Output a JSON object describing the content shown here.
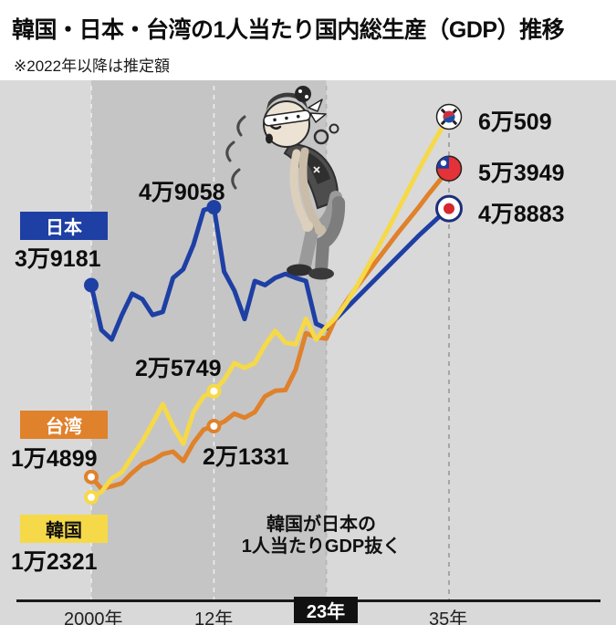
{
  "header": {
    "title": "韓国・日本・台湾の1人当たり国内総生産（GDP）推移",
    "note": "※2022年以降は推定額"
  },
  "series_tags": {
    "japan": "日本",
    "taiwan": "台湾",
    "korea": "韓国"
  },
  "value_labels": {
    "japan_2000": "3万9181",
    "taiwan_2000": "1万4899",
    "korea_2000": "1万2321",
    "japan_peak_2012": "4万9058",
    "korea_2012": "2万5749",
    "taiwan_2012": "2万1331",
    "korea_2035": "6万509",
    "taiwan_2035": "5万3949",
    "japan_2035": "4万8883"
  },
  "annotation": {
    "line1": "韓国が日本の",
    "line2": "1人当たりGDP抜く"
  },
  "x_axis": {
    "tick_2000": "2000年",
    "tick_2012": "12年",
    "tick_2023": "23年",
    "tick_2035": "35年"
  },
  "colors": {
    "japan": "#1e3fa4",
    "taiwan": "#e0812b",
    "korea": "#f6d948",
    "chart_bg": "#d9d9d9",
    "actual_period_bg": "#c5c5c5",
    "highlight_box_bg": "#111111"
  },
  "chart_data": {
    "type": "line",
    "title": "韓国・日本・台湾の1人当たり国内総生産（GDP）推移",
    "note": "※2022年以降は推定額",
    "x": [
      2000,
      2001,
      2002,
      2003,
      2004,
      2005,
      2006,
      2007,
      2008,
      2009,
      2010,
      2011,
      2012,
      2013,
      2014,
      2015,
      2016,
      2017,
      2018,
      2019,
      2020,
      2021,
      2022,
      2023,
      2024,
      2025,
      2026,
      2027,
      2028,
      2029,
      2030,
      2031,
      2032,
      2033,
      2034,
      2035
    ],
    "x_tick_years": [
      2000,
      2012,
      2023,
      2035
    ],
    "estimate_from_year": 2022,
    "ylim": [
      10000,
      65000
    ],
    "series": [
      {
        "name": "日本",
        "color": "#1e3fa4",
        "values": [
          39181,
          33500,
          32300,
          35400,
          38100,
          37400,
          35400,
          35800,
          40100,
          41200,
          44300,
          48700,
          49058,
          40900,
          38500,
          34900,
          39700,
          39200,
          40100,
          40600,
          40100,
          39700,
          34300,
          33700,
          35000,
          36300,
          37600,
          38900,
          40200,
          41500,
          42800,
          44100,
          45400,
          46600,
          47800,
          48883
        ]
      },
      {
        "name": "台湾",
        "color": "#e0812b",
        "values": [
          14899,
          13400,
          13700,
          14100,
          15400,
          16500,
          17000,
          17800,
          18100,
          16900,
          19200,
          20900,
          21331,
          21900,
          22900,
          22400,
          23100,
          25100,
          25800,
          25900,
          28500,
          33100,
          32600,
          32400,
          35200,
          37200,
          39000,
          40700,
          42400,
          44100,
          45800,
          47400,
          49000,
          50700,
          52300,
          53949
        ]
      },
      {
        "name": "韓国",
        "color": "#f6d948",
        "values": [
          12321,
          13000,
          14700,
          15500,
          17500,
          19400,
          21700,
          24100,
          21300,
          19100,
          23100,
          25100,
          25749,
          27200,
          29300,
          28700,
          29300,
          31600,
          33400,
          31900,
          31700,
          34900,
          32300,
          33900,
          35200,
          37000,
          39100,
          41400,
          43800,
          46200,
          48700,
          51200,
          53700,
          56100,
          58400,
          60509
        ]
      }
    ],
    "labeled_points": [
      {
        "series": "日本",
        "year": 2000,
        "value": 39181
      },
      {
        "series": "日本",
        "year": 2012,
        "value": 49058
      },
      {
        "series": "日本",
        "year": 2035,
        "value": 48883
      },
      {
        "series": "台湾",
        "year": 2000,
        "value": 14899
      },
      {
        "series": "台湾",
        "year": 2012,
        "value": 21331
      },
      {
        "series": "台湾",
        "year": 2035,
        "value": 53949
      },
      {
        "series": "韓国",
        "year": 2000,
        "value": 12321
      },
      {
        "series": "韓国",
        "year": 2012,
        "value": 25749
      },
      {
        "series": "韓国",
        "year": 2035,
        "value": 60509
      }
    ],
    "markers": [
      {
        "series": 0,
        "year": 2000,
        "style": "solid"
      },
      {
        "series": 0,
        "year": 2012,
        "style": "solid"
      },
      {
        "series": 1,
        "year": 2000,
        "style": "hollow"
      },
      {
        "series": 1,
        "year": 2012,
        "style": "hollow"
      },
      {
        "series": 2,
        "year": 2000,
        "style": "hollow"
      },
      {
        "series": 2,
        "year": 2012,
        "style": "hollow"
      }
    ]
  }
}
